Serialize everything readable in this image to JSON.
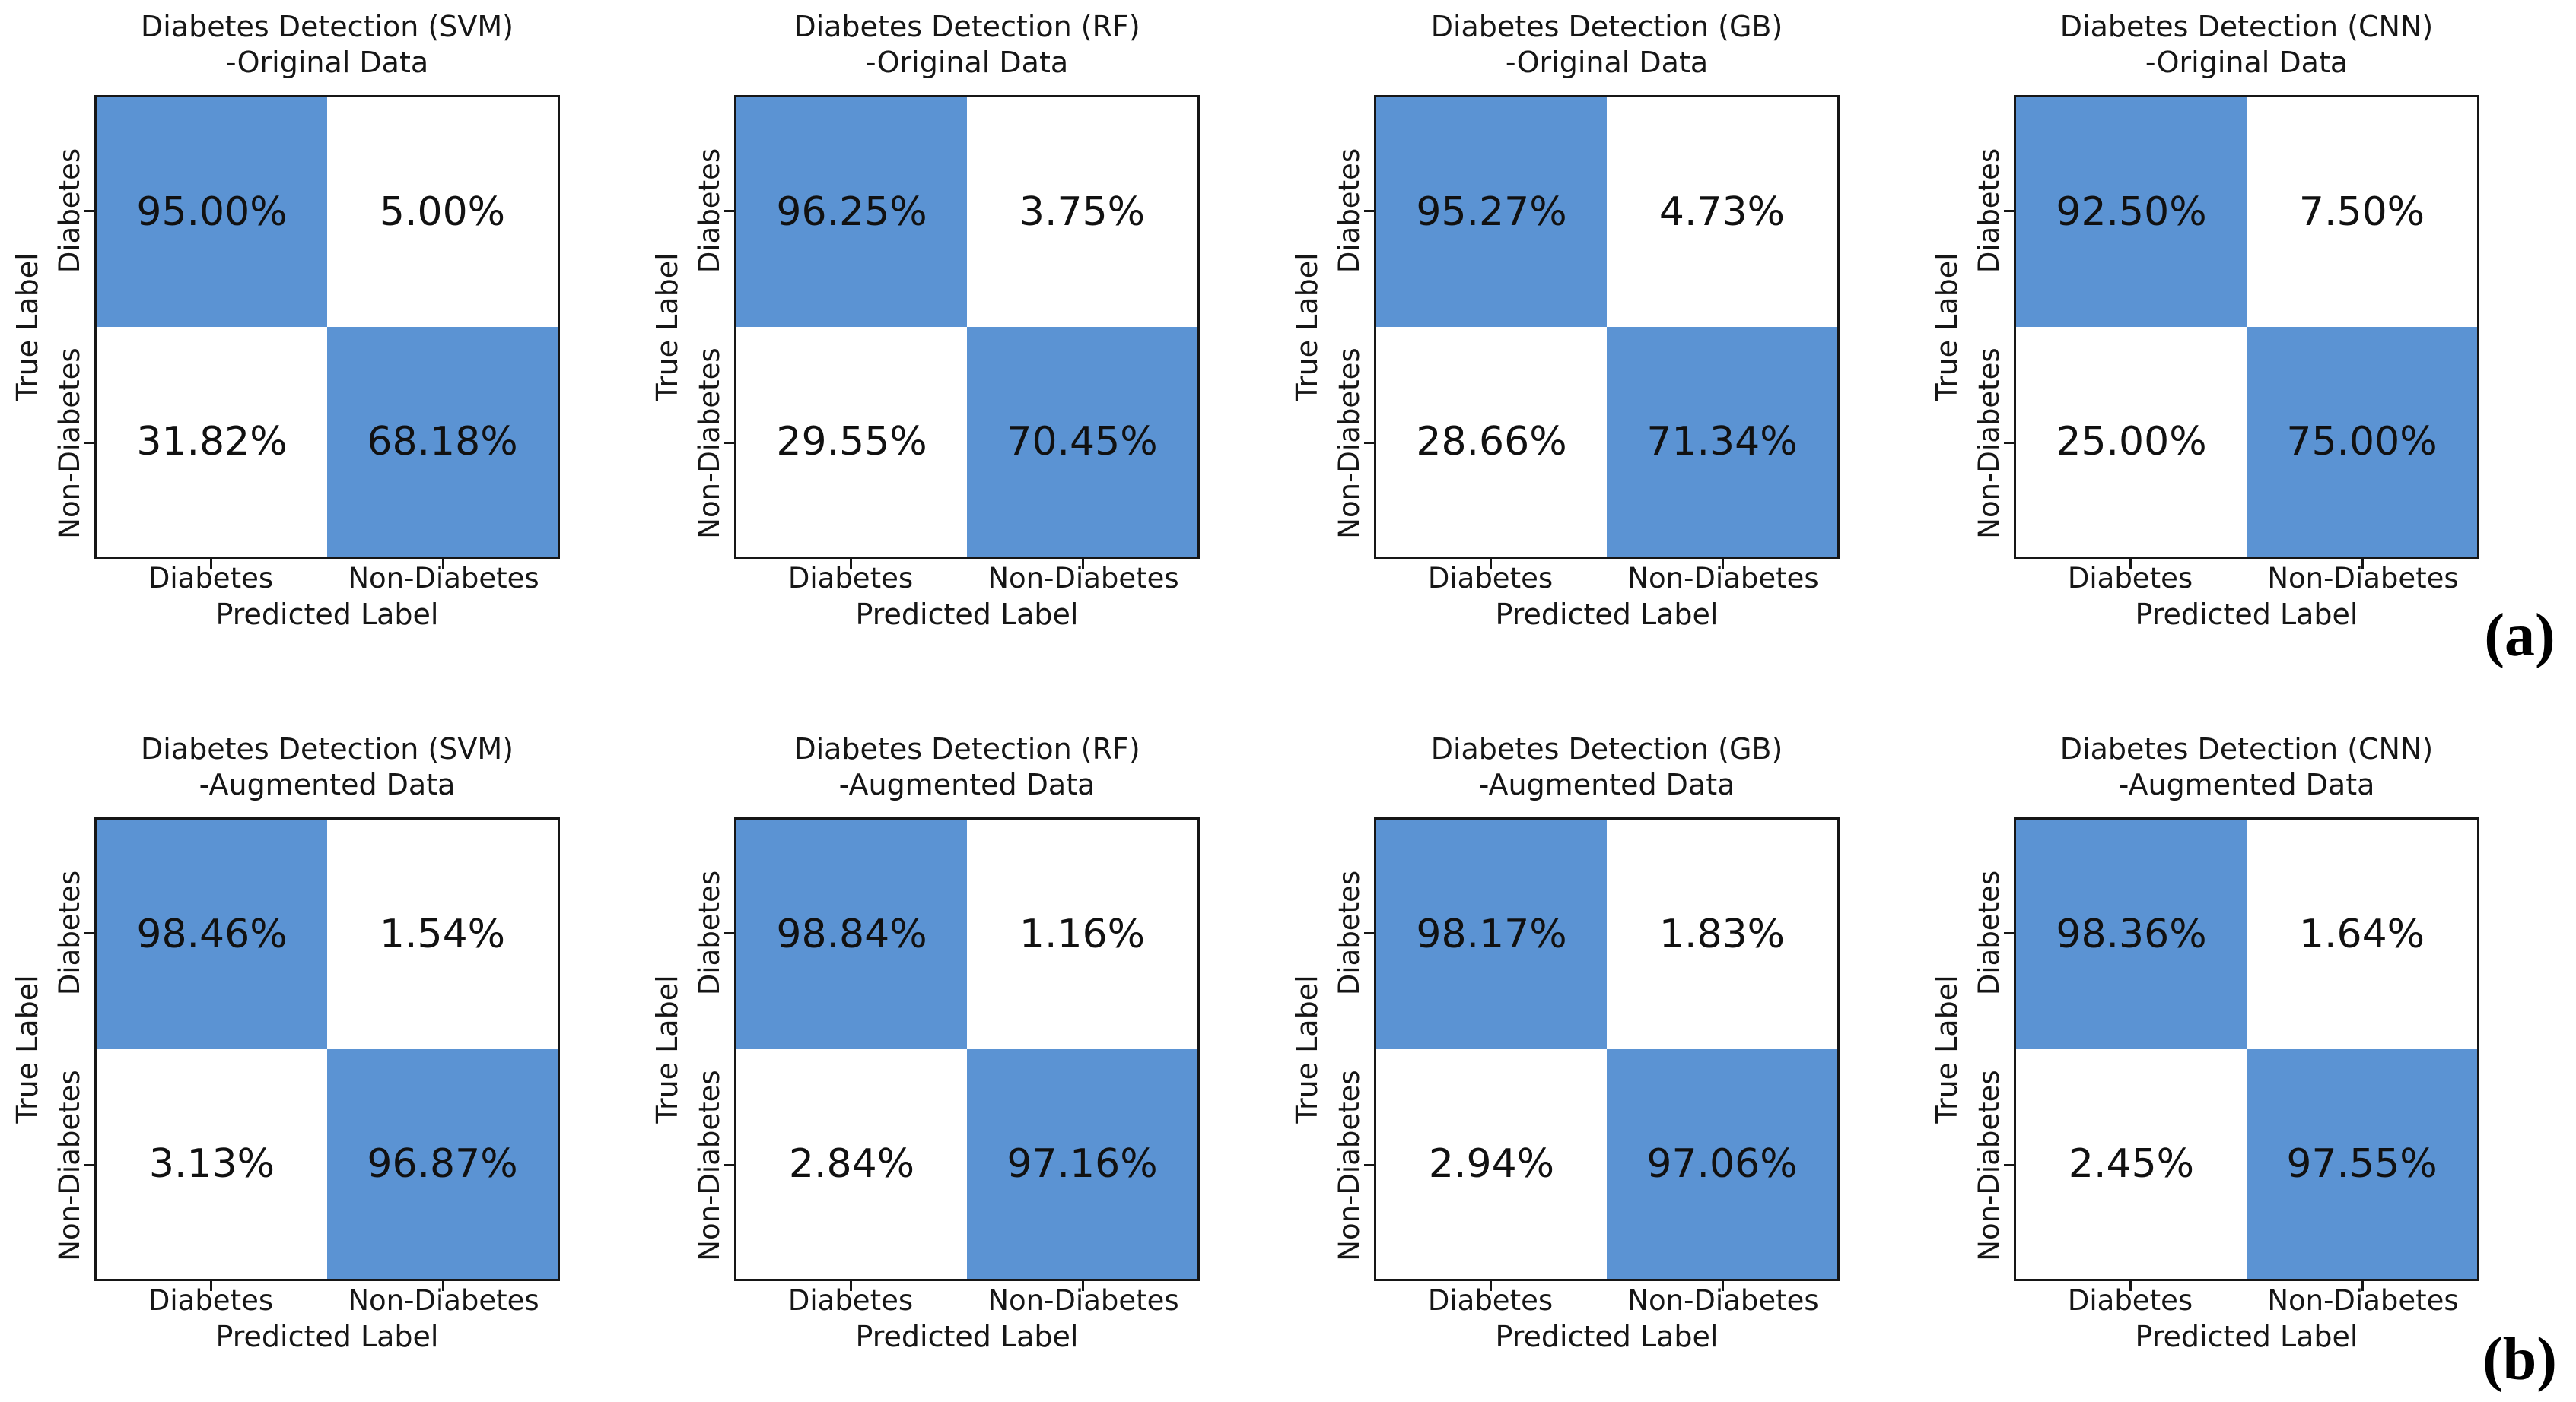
{
  "figure": {
    "group_labels": [
      "(a)",
      "(b)"
    ],
    "colors": {
      "diagonal_fill": "#5B93D3",
      "off_diagonal_fill": "#ffffff",
      "border": "#161616",
      "text": "#111111"
    }
  },
  "axes": {
    "y_label": "True Label",
    "x_label": "Predicted Label",
    "y_ticks": [
      "Diabetes",
      "Non-Diabetes"
    ],
    "x_ticks": [
      "Diabetes",
      "Non-Diabetes"
    ]
  },
  "chart_data": [
    {
      "type": "heatmap",
      "title": "Diabetes Detection (SVM)",
      "subtitle": "-Original Data",
      "model": "SVM",
      "dataset": "Original Data",
      "group": "a",
      "rows": [
        "Diabetes",
        "Non-Diabetes"
      ],
      "cols": [
        "Diabetes",
        "Non-Diabetes"
      ],
      "values_percent": [
        [
          95.0,
          5.0
        ],
        [
          31.82,
          68.18
        ]
      ],
      "cell_labels": [
        [
          "95.00%",
          "5.00%"
        ],
        [
          "31.82%",
          "68.18%"
        ]
      ]
    },
    {
      "type": "heatmap",
      "title": "Diabetes Detection (RF)",
      "subtitle": "-Original Data",
      "model": "RF",
      "dataset": "Original Data",
      "group": "a",
      "rows": [
        "Diabetes",
        "Non-Diabetes"
      ],
      "cols": [
        "Diabetes",
        "Non-Diabetes"
      ],
      "values_percent": [
        [
          96.25,
          3.75
        ],
        [
          29.55,
          70.45
        ]
      ],
      "cell_labels": [
        [
          "96.25%",
          "3.75%"
        ],
        [
          "29.55%",
          "70.45%"
        ]
      ]
    },
    {
      "type": "heatmap",
      "title": "Diabetes Detection (GB)",
      "subtitle": "-Original Data",
      "model": "GB",
      "dataset": "Original Data",
      "group": "a",
      "rows": [
        "Diabetes",
        "Non-Diabetes"
      ],
      "cols": [
        "Diabetes",
        "Non-Diabetes"
      ],
      "values_percent": [
        [
          95.27,
          4.73
        ],
        [
          28.66,
          71.34
        ]
      ],
      "cell_labels": [
        [
          "95.27%",
          "4.73%"
        ],
        [
          "28.66%",
          "71.34%"
        ]
      ]
    },
    {
      "type": "heatmap",
      "title": "Diabetes Detection (CNN)",
      "subtitle": "-Original Data",
      "model": "CNN",
      "dataset": "Original Data",
      "group": "a",
      "rows": [
        "Diabetes",
        "Non-Diabetes"
      ],
      "cols": [
        "Diabetes",
        "Non-Diabetes"
      ],
      "values_percent": [
        [
          92.5,
          7.5
        ],
        [
          25.0,
          75.0
        ]
      ],
      "cell_labels": [
        [
          "92.50%",
          "7.50%"
        ],
        [
          "25.00%",
          "75.00%"
        ]
      ]
    },
    {
      "type": "heatmap",
      "title": "Diabetes Detection (SVM)",
      "subtitle": "-Augmented Data",
      "model": "SVM",
      "dataset": "Augmented Data",
      "group": "b",
      "rows": [
        "Diabetes",
        "Non-Diabetes"
      ],
      "cols": [
        "Diabetes",
        "Non-Diabetes"
      ],
      "values_percent": [
        [
          98.46,
          1.54
        ],
        [
          3.13,
          96.87
        ]
      ],
      "cell_labels": [
        [
          "98.46%",
          "1.54%"
        ],
        [
          "3.13%",
          "96.87%"
        ]
      ]
    },
    {
      "type": "heatmap",
      "title": "Diabetes Detection (RF)",
      "subtitle": "-Augmented Data",
      "model": "RF",
      "dataset": "Augmented Data",
      "group": "b",
      "rows": [
        "Diabetes",
        "Non-Diabetes"
      ],
      "cols": [
        "Diabetes",
        "Non-Diabetes"
      ],
      "values_percent": [
        [
          98.84,
          1.16
        ],
        [
          2.84,
          97.16
        ]
      ],
      "cell_labels": [
        [
          "98.84%",
          "1.16%"
        ],
        [
          "2.84%",
          "97.16%"
        ]
      ]
    },
    {
      "type": "heatmap",
      "title": "Diabetes Detection (GB)",
      "subtitle": "-Augmented Data",
      "model": "GB",
      "dataset": "Augmented Data",
      "group": "b",
      "rows": [
        "Diabetes",
        "Non-Diabetes"
      ],
      "cols": [
        "Diabetes",
        "Non-Diabetes"
      ],
      "values_percent": [
        [
          98.17,
          1.83
        ],
        [
          2.94,
          97.06
        ]
      ],
      "cell_labels": [
        [
          "98.17%",
          "1.83%"
        ],
        [
          "2.94%",
          "97.06%"
        ]
      ]
    },
    {
      "type": "heatmap",
      "title": "Diabetes Detection (CNN)",
      "subtitle": "-Augmented Data",
      "model": "CNN",
      "dataset": "Augmented Data",
      "group": "b",
      "rows": [
        "Diabetes",
        "Non-Diabetes"
      ],
      "cols": [
        "Diabetes",
        "Non-Diabetes"
      ],
      "values_percent": [
        [
          98.36,
          1.64
        ],
        [
          2.45,
          97.55
        ]
      ],
      "cell_labels": [
        [
          "98.36%",
          "1.64%"
        ],
        [
          "2.45%",
          "97.55%"
        ]
      ]
    }
  ]
}
